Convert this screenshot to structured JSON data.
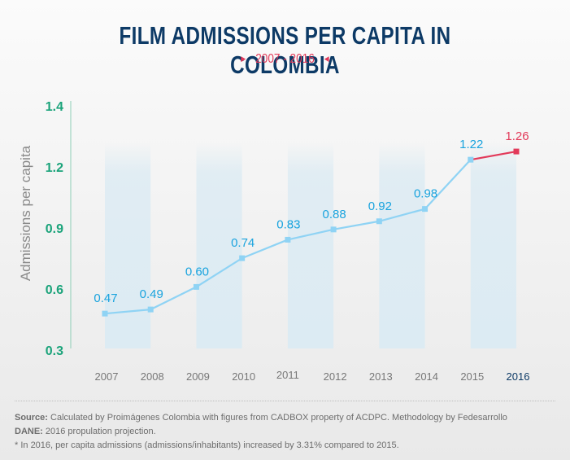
{
  "header": {
    "title": "FILM ADMISSIONS PER CAPITA IN COLOMBIA",
    "subtitle": "2007 - 2016",
    "arrow_left": "▶",
    "arrow_right": "◀"
  },
  "colors": {
    "title": "#0d3a66",
    "accent_red": "#e23a5a",
    "line_blue": "#8fd3f4",
    "label_blue": "#19a3de",
    "ytick_green": "#1aa37a",
    "axis_line": "#8fcfb7",
    "band": "#dcebf3"
  },
  "chart_data": {
    "type": "line",
    "title": "FILM ADMISSIONS PER CAPITA IN COLOMBIA",
    "subtitle": "2007 - 2016",
    "xlabel": "",
    "ylabel": "Admissions per capita",
    "y_tick_labels": [
      "1.4",
      "1.2",
      "0.9",
      "0.6",
      "0.3"
    ],
    "ylim": [
      0.3,
      1.4
    ],
    "categories": [
      "2007",
      "2008",
      "2009",
      "2010",
      "2011",
      "2012",
      "2013",
      "2014",
      "2015",
      "2016"
    ],
    "series": [
      {
        "name": "Admissions per capita",
        "values": [
          0.47,
          0.49,
          0.6,
          0.74,
          0.83,
          0.88,
          0.92,
          0.98,
          1.22,
          1.26
        ],
        "labels": [
          "0.47",
          "0.49",
          "0.60",
          "0.74",
          "0.83",
          "0.88",
          "0.92",
          "0.98",
          "1.22",
          "1.26"
        ],
        "highlight_last": true
      }
    ],
    "grid": false,
    "legend": "none"
  },
  "footer": {
    "source_label": "Source:",
    "source_text": " Calculated by Proimágenes Colombia with figures from CADBOX property of ACDPC. Methodology by Fedesarrollo",
    "dane_label": "DANE:",
    "dane_text": " 2016 propulation projection.",
    "note": "* In 2016, per capita admissions (admissions/inhabitants) increased by 3.31% compared to 2015."
  }
}
